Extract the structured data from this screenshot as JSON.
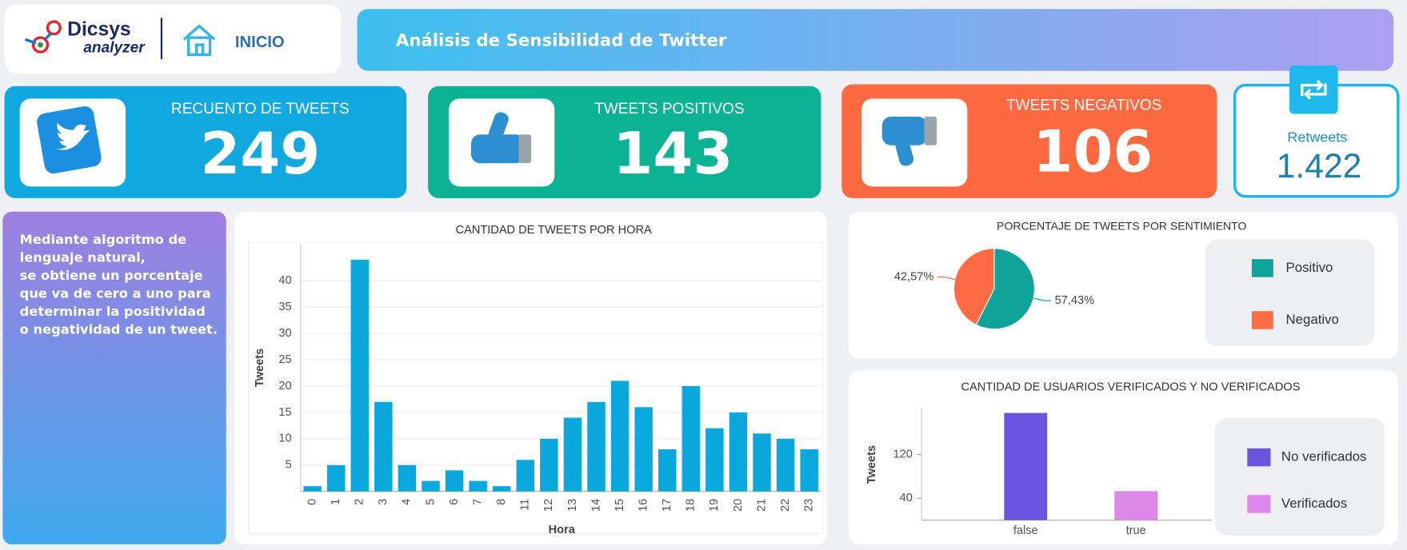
{
  "header": {
    "brand": "Dicsys",
    "brand_sub": "analyzer",
    "nav": "INICIO",
    "title": "Análisis de Sensibilidad de Twitter"
  },
  "kpis": [
    {
      "label": "RECUENTO DE TWEETS",
      "value": 249
    },
    {
      "label": "TWEETS POSITIVOS",
      "value": 143
    },
    {
      "label": "TWEETS NEGATIVOS",
      "value": 106
    }
  ],
  "retweets": {
    "label": "Retweets",
    "value": "1.422"
  },
  "description": [
    "Mediante algoritmo de",
    "lenguaje natural,",
    "se obtiene un porcentaje",
    "que va de cero a uno para",
    "determinar la positividad",
    "o negatividad de un tweet."
  ],
  "chart_data": [
    {
      "type": "bar",
      "title": "CANTIDAD DE TWEETS POR HORA",
      "xlabel": "Hora",
      "ylabel": "Tweets",
      "categories": [
        "0",
        "1",
        "2",
        "3",
        "4",
        "5",
        "6",
        "7",
        "8",
        "11",
        "12",
        "13",
        "14",
        "15",
        "16",
        "17",
        "18",
        "19",
        "20",
        "21",
        "22",
        "23"
      ],
      "values": [
        1,
        5,
        44,
        17,
        5,
        2,
        4,
        2,
        1,
        6,
        10,
        14,
        17,
        21,
        16,
        8,
        20,
        12,
        15,
        11,
        10,
        8
      ],
      "color": "#0aa8dc",
      "ylim": [
        0,
        47
      ],
      "yticks": [
        5,
        10,
        15,
        20,
        25,
        30,
        35,
        40
      ],
      "grid": true
    },
    {
      "type": "pie",
      "title": "PORCENTAJE DE TWEETS POR SENTIMIENTO",
      "categories": [
        "Positivo",
        "Negativo"
      ],
      "values": [
        57.43,
        42.57
      ],
      "value_labels": [
        "57,43%",
        "42,57%"
      ],
      "colors": [
        "#0fa39a",
        "#ff6b45"
      ],
      "legend": "right"
    },
    {
      "type": "bar",
      "title": "CANTIDAD DE USUARIOS VERIFICADOS Y NO VERIFICADOS",
      "ylabel": "Tweets",
      "categories": [
        "false",
        "true"
      ],
      "series": [
        {
          "name": "No verificados",
          "color": "#6b55e0",
          "values": [
            196,
            null
          ]
        },
        {
          "name": "Verificados",
          "color": "#dd88e8",
          "values": [
            null,
            53
          ]
        }
      ],
      "ylim": [
        0,
        205
      ],
      "yticks": [
        40,
        120
      ],
      "grid": false,
      "legend": "right"
    }
  ]
}
